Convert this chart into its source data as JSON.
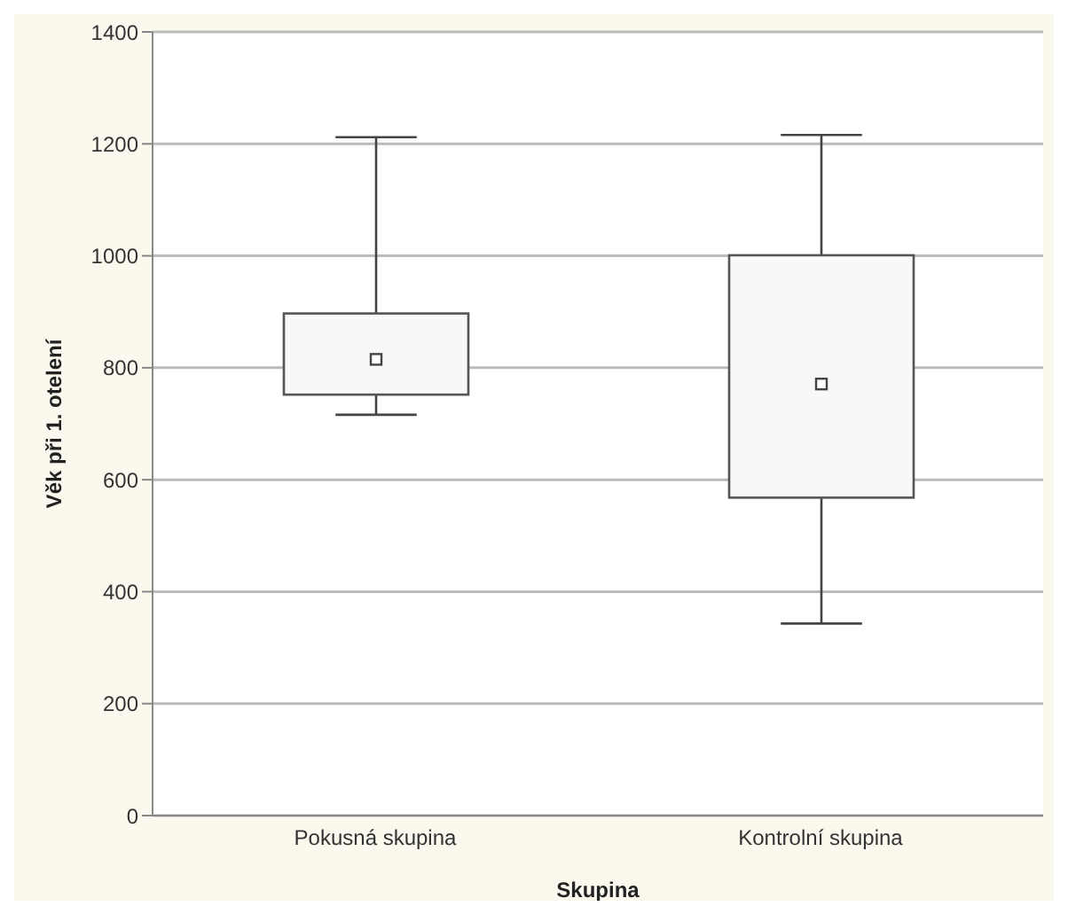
{
  "chart_data": {
    "type": "box",
    "xlabel": "Skupina",
    "ylabel": "Věk při 1. otelení",
    "categories": [
      "Pokusná skupina",
      "Kontrolní skupina"
    ],
    "boxes": [
      {
        "low": 716,
        "q1": 752,
        "median": null,
        "q3": 897,
        "high": 1212,
        "mean": 815
      },
      {
        "low": 343,
        "q1": 568,
        "median": null,
        "q3": 1001,
        "high": 1216,
        "mean": 771
      }
    ],
    "ylim": [
      0,
      1400
    ],
    "yticks": [
      0,
      200,
      400,
      600,
      800,
      1000,
      1200,
      1400
    ],
    "grid": "y"
  }
}
